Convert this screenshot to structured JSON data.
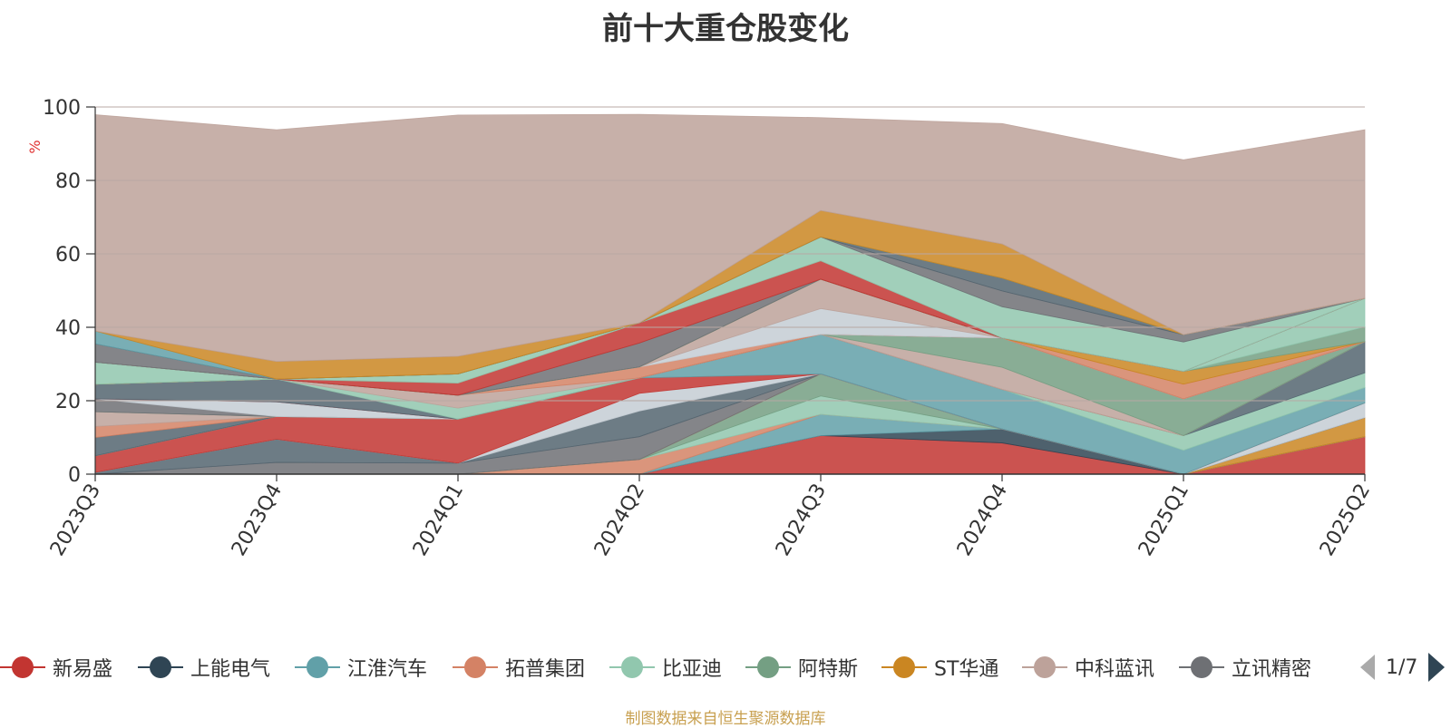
{
  "chart_data": {
    "type": "area",
    "title": "前十大重仓股变化",
    "ylabel": "%",
    "xlabel": "",
    "ylim": [
      0,
      100
    ],
    "yticks": [
      0,
      20,
      40,
      60,
      80,
      100
    ],
    "grid": true,
    "stacked": true,
    "categories": [
      "2023Q3",
      "2023Q4",
      "2024Q1",
      "2024Q2",
      "2024Q3",
      "2024Q4",
      "2025Q1",
      "2025Q2"
    ],
    "series": [
      {
        "name": "新易盛",
        "color": "#c23531",
        "values": [
          0,
          0,
          0,
          0,
          10.5,
          8.5,
          0,
          10.2
        ]
      },
      {
        "name": "上能电气",
        "color": "#2f4554",
        "values": [
          0,
          0,
          0,
          0,
          0,
          3.8,
          0,
          0
        ]
      },
      {
        "name": "江淮汽车",
        "color": "#61a0a8",
        "values": [
          0,
          0,
          0,
          0,
          5.8,
          0,
          0,
          0
        ]
      },
      {
        "name": "拓普集团",
        "color": "#d48265",
        "values": [
          0,
          0,
          0,
          4.0,
          0,
          0,
          0,
          0
        ]
      },
      {
        "name": "比亚迪",
        "color": "#91c7ae",
        "values": [
          0,
          0,
          0,
          0,
          5.0,
          0,
          0,
          0
        ]
      },
      {
        "name": "阿特斯",
        "color": "#749f83",
        "values": [
          0,
          0,
          0,
          0,
          6.0,
          0,
          0,
          0
        ]
      },
      {
        "name": "ST华通",
        "color": "#ca8622",
        "values": [
          0,
          0,
          0,
          0,
          0,
          0,
          0,
          5.2
        ]
      },
      {
        "name": "中科蓝讯",
        "color": "#bda29a",
        "values": [
          0,
          0,
          0,
          0,
          0,
          0,
          0,
          0
        ]
      },
      {
        "name": "立讯精密",
        "color": "#6e7074",
        "values": [
          0,
          3.2,
          3.0,
          6.2,
          0,
          0,
          0,
          0
        ]
      },
      {
        "name": "",
        "color": "#546570",
        "values": [
          0.5,
          6.3,
          0,
          7.0,
          0,
          0,
          0,
          0
        ]
      },
      {
        "name": "",
        "color": "#c4ccd3",
        "values": [
          0,
          0,
          0,
          4.8,
          0,
          0,
          0,
          4.0
        ]
      },
      {
        "name": "",
        "color": "#c23531",
        "values": [
          4.5,
          6.2,
          12.0,
          4.2,
          0,
          0,
          0,
          0
        ]
      },
      {
        "name": "",
        "color": "#61a0a8",
        "values": [
          0,
          0,
          0,
          0,
          10.8,
          10.8,
          6.5,
          4.2
        ]
      },
      {
        "name": "",
        "color": "#91c7ae",
        "values": [
          0,
          0,
          0,
          0,
          0,
          0,
          4.0,
          4.0
        ]
      },
      {
        "name": "",
        "color": "#546570",
        "values": [
          5.0,
          0,
          0,
          0,
          0,
          0,
          0,
          8.5
        ]
      },
      {
        "name": "",
        "color": "#d48265",
        "values": [
          3.0,
          0,
          0,
          0,
          0,
          0,
          0,
          0
        ]
      },
      {
        "name": "",
        "color": "#bda29a",
        "values": [
          4.0,
          0,
          0,
          0,
          0,
          6.0,
          0,
          0
        ]
      },
      {
        "name": "",
        "color": "#749f83",
        "values": [
          0,
          0,
          0,
          0,
          0,
          8.0,
          10.0,
          0
        ]
      },
      {
        "name": "",
        "color": "#6e7074",
        "values": [
          3.5,
          0,
          0,
          0,
          0,
          0,
          0,
          0
        ]
      },
      {
        "name": "",
        "color": "#c4ccd3",
        "values": [
          0,
          4.0,
          0,
          0,
          0,
          0,
          0,
          0
        ]
      },
      {
        "name": "",
        "color": "#c23531",
        "values": [
          0,
          0,
          0,
          0,
          0,
          0,
          0,
          0
        ]
      },
      {
        "name": "",
        "color": "#546570",
        "values": [
          4.0,
          6.2,
          0,
          0,
          0,
          0,
          0,
          0
        ]
      },
      {
        "name": "",
        "color": "#91c7ae",
        "values": [
          0,
          0,
          3.0,
          0,
          0,
          0,
          0,
          0
        ]
      },
      {
        "name": "",
        "color": "#bda29a",
        "values": [
          0,
          0,
          3.5,
          0,
          0,
          0,
          0,
          0
        ]
      },
      {
        "name": "",
        "color": "#d48265",
        "values": [
          0,
          0,
          0,
          3.0,
          0,
          0,
          0,
          0
        ]
      },
      {
        "name": "",
        "color": "#c4ccd3",
        "values": [
          0,
          0,
          0,
          0,
          7.0,
          0,
          0,
          0
        ]
      },
      {
        "name": "",
        "color": "#bda29a",
        "values": [
          0,
          0,
          0,
          0,
          8.0,
          0,
          0,
          0
        ]
      },
      {
        "name": "",
        "color": "#d48265",
        "values": [
          0,
          0,
          0,
          0,
          0,
          0,
          4.0,
          0
        ]
      },
      {
        "name": "",
        "color": "#ca8622",
        "values": [
          0,
          0,
          0,
          0,
          0,
          0,
          3.5,
          0
        ]
      },
      {
        "name": "",
        "color": "#749f83",
        "values": [
          0,
          0,
          0,
          0,
          0,
          0,
          0,
          4.0
        ]
      },
      {
        "name": "",
        "color": "#91c7ae",
        "values": [
          6.0,
          0,
          0,
          0,
          0,
          0,
          0,
          7.8
        ]
      },
      {
        "name": "",
        "color": "#6e7074",
        "values": [
          0,
          0,
          0,
          6.5,
          0,
          0,
          0,
          0
        ]
      },
      {
        "name": "",
        "color": "#c23531",
        "values": [
          0,
          0,
          3.3,
          5.5,
          5.0,
          0,
          0,
          0
        ]
      },
      {
        "name": "",
        "color": "#91c7ae",
        "values": [
          0,
          0,
          2.5,
          0,
          6.5,
          8.5,
          8.0,
          0
        ]
      },
      {
        "name": "",
        "color": "#6e7074",
        "values": [
          5.0,
          0,
          0,
          0,
          0,
          4.3,
          2.0,
          0
        ]
      },
      {
        "name": "",
        "color": "#546570",
        "values": [
          0,
          0,
          0,
          0,
          0,
          3.5,
          0,
          0
        ]
      },
      {
        "name": "",
        "color": "#61a0a8",
        "values": [
          3.5,
          0,
          0,
          0,
          0,
          0,
          0,
          0
        ]
      },
      {
        "name": "",
        "color": "#ca8622",
        "values": [
          0,
          4.8,
          4.8,
          0,
          7.2,
          9.3,
          0,
          0
        ]
      },
      {
        "name": "",
        "color": "#bda29a",
        "values": [
          58.9,
          63.1,
          65.7,
          56.8,
          25.3,
          32.8,
          47.6,
          45.9
        ]
      }
    ]
  },
  "legend": {
    "items": [
      {
        "name": "新易盛",
        "color": "#c23531"
      },
      {
        "name": "上能电气",
        "color": "#2f4554"
      },
      {
        "name": "江淮汽车",
        "color": "#61a0a8"
      },
      {
        "name": "拓普集团",
        "color": "#d48265"
      },
      {
        "name": "比亚迪",
        "color": "#91c7ae"
      },
      {
        "name": "阿特斯",
        "color": "#749f83"
      },
      {
        "name": "ST华通",
        "color": "#ca8622"
      },
      {
        "name": "中科蓝讯",
        "color": "#bda29a"
      },
      {
        "name": "立讯精密",
        "color": "#6e7074"
      }
    ],
    "page_text": "1/7"
  },
  "footer": {
    "note": "制图数据来自恒生聚源数据库"
  }
}
